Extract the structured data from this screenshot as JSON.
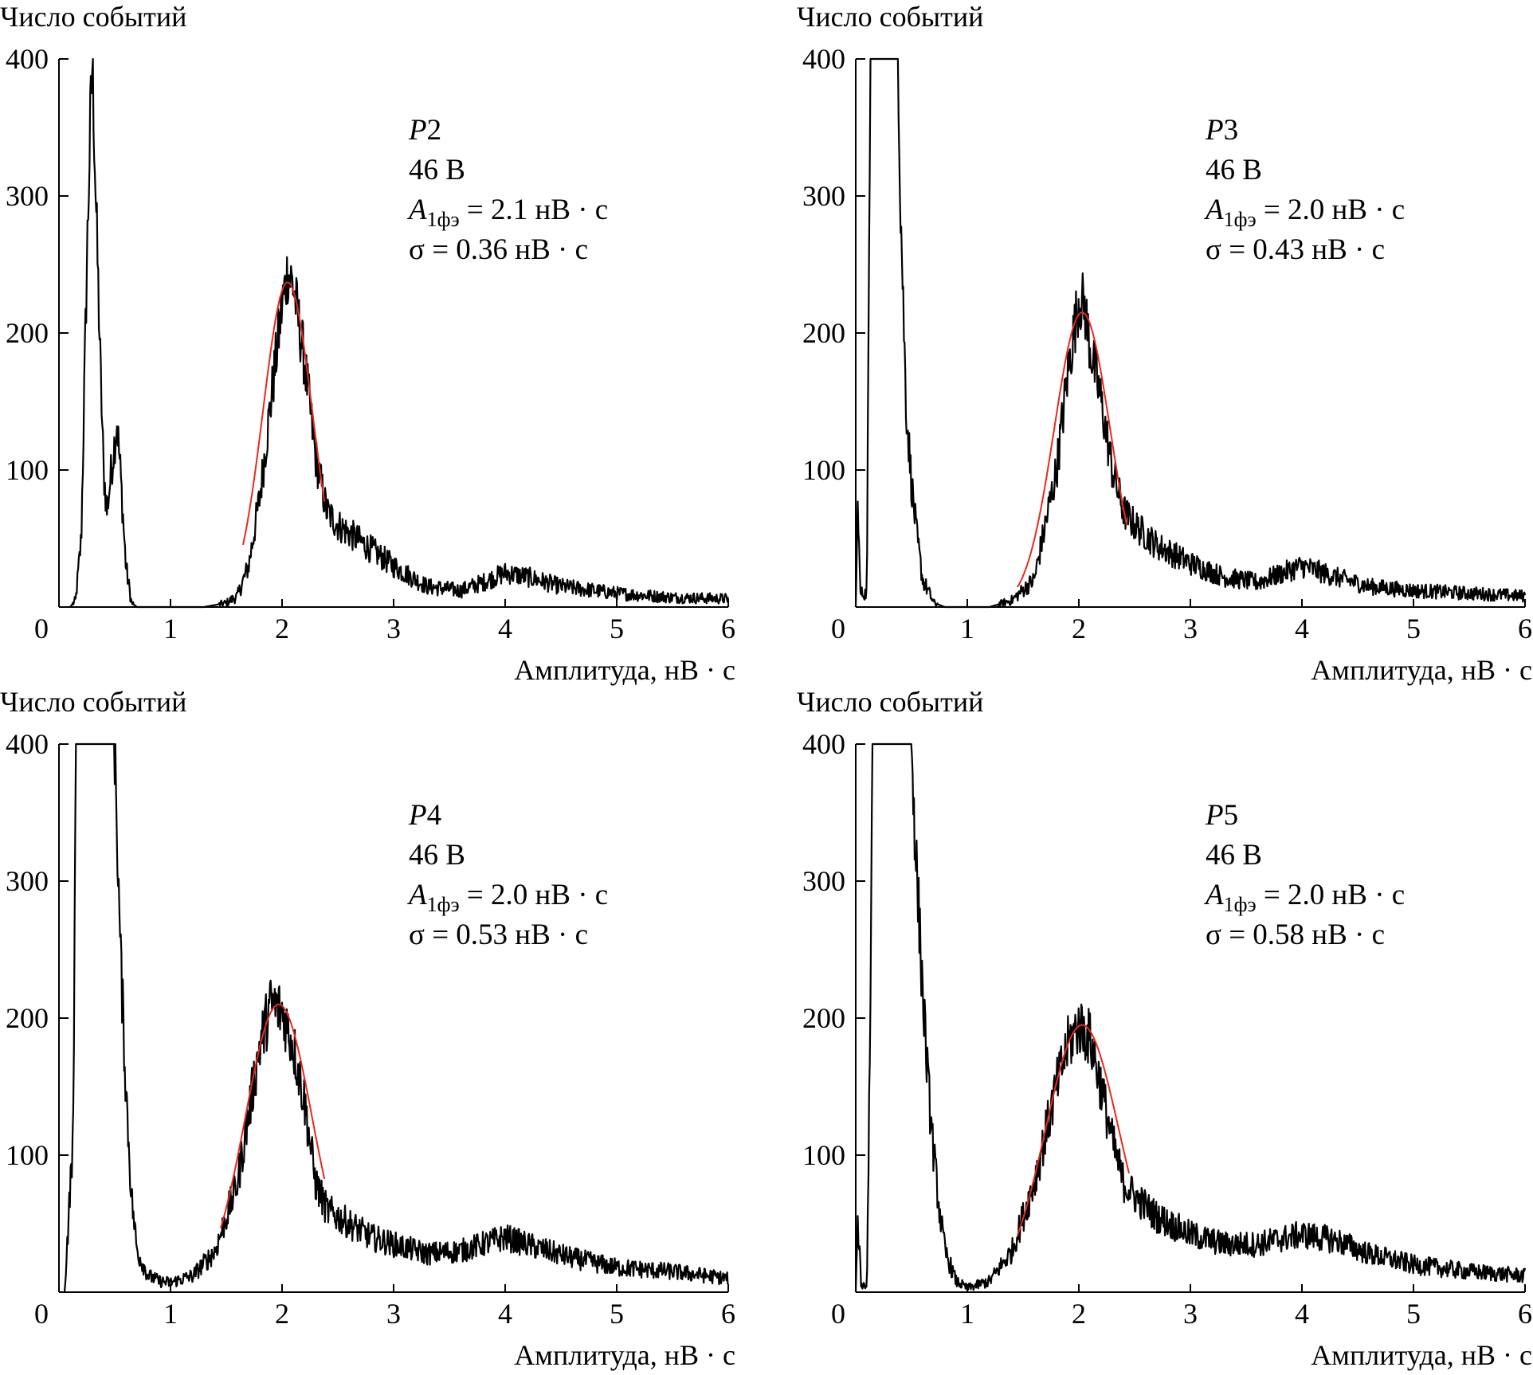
{
  "chart_data": [
    {
      "type": "line",
      "ylabel": "Число событий",
      "xlabel": "Амплитуда, нВ · с",
      "xlim": [
        0,
        6
      ],
      "ylim": [
        0,
        400
      ],
      "xticks": [
        "0",
        "1",
        "2",
        "3",
        "4",
        "5",
        "6"
      ],
      "yticks": [
        "100",
        "200",
        "300",
        "400"
      ],
      "annotation": {
        "label": "P2",
        "voltage": "46 В",
        "a_symbol": "A",
        "a_sub": "1фэ",
        "a_value": " = 2.1 нВ · с",
        "sigma": "σ = 0.36 нВ · с"
      },
      "histogram": [
        [
          0.1,
          0
        ],
        [
          0.15,
          5
        ],
        [
          0.2,
          50
        ],
        [
          0.25,
          250
        ],
        [
          0.28,
          350
        ],
        [
          0.3,
          400
        ],
        [
          0.33,
          300
        ],
        [
          0.37,
          180
        ],
        [
          0.4,
          100
        ],
        [
          0.43,
          70
        ],
        [
          0.47,
          100
        ],
        [
          0.52,
          135
        ],
        [
          0.55,
          100
        ],
        [
          0.6,
          30
        ],
        [
          0.65,
          3
        ],
        [
          0.7,
          0
        ],
        [
          1.3,
          0
        ],
        [
          1.5,
          3
        ],
        [
          1.6,
          8
        ],
        [
          1.7,
          30
        ],
        [
          1.8,
          80
        ],
        [
          1.9,
          150
        ],
        [
          2.0,
          220
        ],
        [
          2.05,
          245
        ],
        [
          2.1,
          235
        ],
        [
          2.2,
          180
        ],
        [
          2.3,
          110
        ],
        [
          2.4,
          70
        ],
        [
          2.5,
          60
        ],
        [
          2.7,
          48
        ],
        [
          3.0,
          30
        ],
        [
          3.3,
          15
        ],
        [
          3.6,
          12
        ],
        [
          3.8,
          18
        ],
        [
          4.0,
          25
        ],
        [
          4.2,
          22
        ],
        [
          4.5,
          15
        ],
        [
          5.0,
          10
        ],
        [
          5.5,
          7
        ],
        [
          6.0,
          6
        ]
      ],
      "fit": {
        "type": "gaussian",
        "mean": 2.05,
        "amplitude": 237,
        "sigma": 0.22,
        "range": [
          1.65,
          2.38
        ]
      },
      "fit_color": "#e8291c"
    },
    {
      "type": "line",
      "ylabel": "Число событий",
      "xlabel": "Амплитуда, нВ · с",
      "xlim": [
        0,
        6
      ],
      "ylim": [
        0,
        400
      ],
      "xticks": [
        "0",
        "1",
        "2",
        "3",
        "4",
        "5",
        "6"
      ],
      "yticks": [
        "100",
        "200",
        "300",
        "400"
      ],
      "annotation": {
        "label": "P3",
        "voltage": "46 В",
        "a_symbol": "A",
        "a_sub": "1фэ",
        "a_value": " = 2.0 нВ · с",
        "sigma": "σ = 0.43 нВ · с"
      },
      "histogram": [
        [
          0.0,
          0
        ],
        [
          0.02,
          80
        ],
        [
          0.04,
          10
        ],
        [
          0.1,
          10
        ],
        [
          0.13,
          400
        ],
        [
          0.38,
          400
        ],
        [
          0.4,
          300
        ],
        [
          0.45,
          150
        ],
        [
          0.5,
          90
        ],
        [
          0.55,
          50
        ],
        [
          0.6,
          20
        ],
        [
          0.7,
          3
        ],
        [
          0.8,
          0
        ],
        [
          1.2,
          0
        ],
        [
          1.4,
          5
        ],
        [
          1.6,
          20
        ],
        [
          1.8,
          100
        ],
        [
          1.9,
          170
        ],
        [
          2.0,
          225
        ],
        [
          2.05,
          220
        ],
        [
          2.1,
          190
        ],
        [
          2.2,
          150
        ],
        [
          2.3,
          100
        ],
        [
          2.4,
          70
        ],
        [
          2.5,
          60
        ],
        [
          2.7,
          45
        ],
        [
          3.0,
          32
        ],
        [
          3.3,
          22
        ],
        [
          3.6,
          18
        ],
        [
          4.0,
          30
        ],
        [
          4.3,
          22
        ],
        [
          4.6,
          15
        ],
        [
          5.0,
          12
        ],
        [
          5.5,
          10
        ],
        [
          6.0,
          8
        ]
      ],
      "fit": {
        "type": "gaussian",
        "mean": 2.03,
        "amplitude": 215,
        "sigma": 0.25,
        "range": [
          1.45,
          2.43
        ]
      },
      "fit_color": "#e8291c"
    },
    {
      "type": "line",
      "ylabel": "Число событий",
      "xlabel": "Амплитуда, нВ · с",
      "xlim": [
        0,
        6
      ],
      "ylim": [
        0,
        400
      ],
      "xticks": [
        "0",
        "1",
        "2",
        "3",
        "4",
        "5",
        "6"
      ],
      "yticks": [
        "100",
        "200",
        "300",
        "400"
      ],
      "annotation": {
        "label": "P4",
        "voltage": "46 В",
        "a_symbol": "A",
        "a_sub": "1фэ",
        "a_value": " = 2.0 нВ · с",
        "sigma": "σ = 0.53 нВ · с"
      },
      "histogram": [
        [
          0.05,
          0
        ],
        [
          0.13,
          120
        ],
        [
          0.15,
          400
        ],
        [
          0.5,
          400
        ],
        [
          0.55,
          250
        ],
        [
          0.6,
          150
        ],
        [
          0.65,
          70
        ],
        [
          0.7,
          30
        ],
        [
          0.8,
          12
        ],
        [
          0.9,
          8
        ],
        [
          1.0,
          7
        ],
        [
          1.2,
          12
        ],
        [
          1.4,
          30
        ],
        [
          1.6,
          80
        ],
        [
          1.8,
          180
        ],
        [
          1.9,
          210
        ],
        [
          2.0,
          205
        ],
        [
          2.1,
          180
        ],
        [
          2.2,
          140
        ],
        [
          2.3,
          80
        ],
        [
          2.4,
          60
        ],
        [
          2.6,
          50
        ],
        [
          2.8,
          40
        ],
        [
          3.0,
          35
        ],
        [
          3.3,
          28
        ],
        [
          3.6,
          30
        ],
        [
          4.0,
          40
        ],
        [
          4.3,
          32
        ],
        [
          4.6,
          25
        ],
        [
          5.0,
          18
        ],
        [
          5.5,
          15
        ],
        [
          6.0,
          10
        ]
      ],
      "fit": {
        "type": "gaussian",
        "mean": 1.97,
        "amplitude": 210,
        "sigma": 0.3,
        "range": [
          1.45,
          2.38
        ]
      },
      "fit_color": "#e8291c"
    },
    {
      "type": "line",
      "ylabel": "Число событий",
      "xlabel": "Амплитуда, нВ · с",
      "xlim": [
        0,
        6
      ],
      "ylim": [
        0,
        400
      ],
      "xticks": [
        "0",
        "1",
        "2",
        "3",
        "4",
        "5",
        "6"
      ],
      "yticks": [
        "100",
        "200",
        "300",
        "400"
      ],
      "annotation": {
        "label": "P5",
        "voltage": "46 В",
        "a_symbol": "A",
        "a_sub": "1фэ",
        "a_value": " = 2.0 нВ · с",
        "sigma": "σ = 0.58 нВ · с"
      },
      "histogram": [
        [
          0.0,
          0
        ],
        [
          0.02,
          50
        ],
        [
          0.05,
          5
        ],
        [
          0.1,
          5
        ],
        [
          0.13,
          200
        ],
        [
          0.15,
          400
        ],
        [
          0.5,
          400
        ],
        [
          0.55,
          300
        ],
        [
          0.6,
          220
        ],
        [
          0.65,
          150
        ],
        [
          0.7,
          100
        ],
        [
          0.75,
          60
        ],
        [
          0.8,
          30
        ],
        [
          0.9,
          8
        ],
        [
          1.0,
          3
        ],
        [
          1.2,
          8
        ],
        [
          1.4,
          30
        ],
        [
          1.6,
          80
        ],
        [
          1.8,
          150
        ],
        [
          1.9,
          180
        ],
        [
          2.0,
          195
        ],
        [
          2.1,
          185
        ],
        [
          2.2,
          150
        ],
        [
          2.3,
          110
        ],
        [
          2.4,
          80
        ],
        [
          2.5,
          70
        ],
        [
          2.7,
          55
        ],
        [
          3.0,
          42
        ],
        [
          3.3,
          35
        ],
        [
          3.6,
          35
        ],
        [
          4.0,
          42
        ],
        [
          4.3,
          38
        ],
        [
          4.6,
          28
        ],
        [
          5.0,
          20
        ],
        [
          5.5,
          15
        ],
        [
          6.0,
          12
        ]
      ],
      "fit": {
        "type": "gaussian",
        "mean": 2.03,
        "amplitude": 195,
        "sigma": 0.33,
        "range": [
          1.45,
          2.45
        ]
      },
      "fit_color": "#e8291c"
    }
  ]
}
